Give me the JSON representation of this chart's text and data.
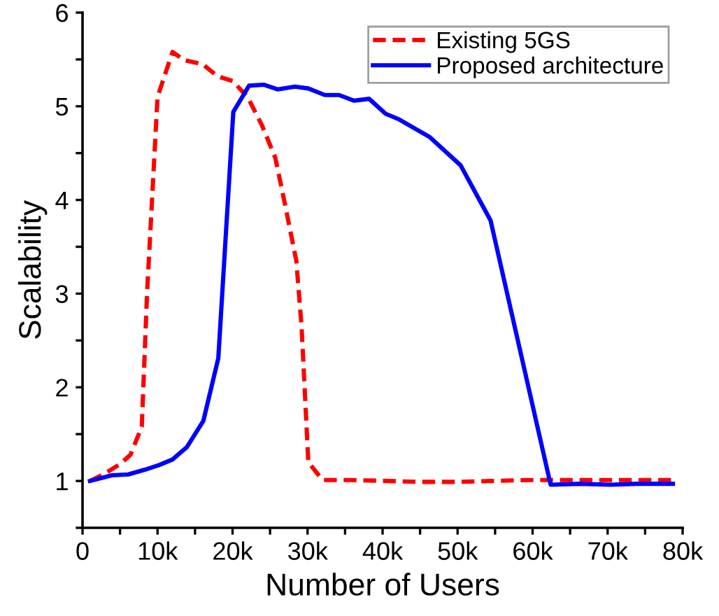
{
  "chart_data": {
    "type": "line",
    "xlabel": "Number of Users",
    "ylabel": "Scalability",
    "xlim": [
      0,
      80000
    ],
    "ylim": [
      0.5,
      6
    ],
    "xticks": [
      0,
      {
        "value": 5000,
        "label": null
      },
      {
        "value": 10000,
        "label": "10k"
      },
      {
        "value": 15000,
        "label": null
      },
      {
        "value": 20000,
        "label": "20k"
      },
      {
        "value": 25000,
        "label": null
      },
      {
        "value": 30000,
        "label": "30k"
      },
      {
        "value": 35000,
        "label": null
      },
      {
        "value": 40000,
        "label": "40k"
      },
      {
        "value": 45000,
        "label": null
      },
      {
        "value": 50000,
        "label": "50k"
      },
      {
        "value": 55000,
        "label": null
      },
      {
        "value": 60000,
        "label": "60k"
      },
      {
        "value": 65000,
        "label": null
      },
      {
        "value": 70000,
        "label": "70k"
      },
      {
        "value": 75000,
        "label": null
      },
      {
        "value": 80000,
        "label": "80k"
      }
    ],
    "yticks": [
      {
        "value": 0.5,
        "label": null
      },
      1,
      {
        "value": 1.5,
        "label": null
      },
      2,
      {
        "value": 2.5,
        "label": null
      },
      3,
      {
        "value": 3.5,
        "label": null
      },
      4,
      {
        "value": 4.5,
        "label": null
      },
      5,
      {
        "value": 5.5,
        "label": null
      },
      6
    ],
    "legend": "top right",
    "grid": false,
    "series": [
      {
        "name": "Existing 5GS",
        "color": "#ff0000",
        "line_style": "dashed",
        "x": [
          1000,
          3000,
          5000,
          6400,
          7900,
          8600,
          10000,
          12000,
          13600,
          16000,
          18000,
          20000,
          22000,
          23900,
          25700,
          27000,
          28500,
          29200,
          30100,
          32000,
          35700,
          40700,
          45000,
          50000,
          54400,
          59400,
          63800,
          68000,
          73000,
          78700
        ],
        "values": [
          1.0,
          1.08,
          1.18,
          1.28,
          1.58,
          3.0,
          5.1,
          5.58,
          5.49,
          5.45,
          5.32,
          5.27,
          5.1,
          4.8,
          4.45,
          3.95,
          3.35,
          2.65,
          1.2,
          1.01,
          1.01,
          1.0,
          0.99,
          0.99,
          1.0,
          1.01,
          1.01,
          1.01,
          1.01,
          1.01
        ]
      },
      {
        "name": "Proposed architecture",
        "color": "#0000ff",
        "line_style": "solid",
        "x": [
          1000,
          3900,
          6100,
          8300,
          10200,
          12000,
          13900,
          16100,
          18100,
          20100,
          22200,
          24200,
          26000,
          28300,
          30100,
          32300,
          34200,
          36200,
          38200,
          40400,
          42200,
          46300,
          50400,
          54400,
          62400,
          66300,
          70400,
          73800,
          78700
        ],
        "values": [
          1.0,
          1.06,
          1.07,
          1.12,
          1.17,
          1.23,
          1.36,
          1.64,
          2.31,
          4.94,
          5.22,
          5.23,
          5.18,
          5.21,
          5.19,
          5.12,
          5.12,
          5.06,
          5.08,
          4.92,
          4.86,
          4.67,
          4.37,
          3.78,
          0.96,
          0.97,
          0.96,
          0.97,
          0.97
        ]
      }
    ]
  }
}
